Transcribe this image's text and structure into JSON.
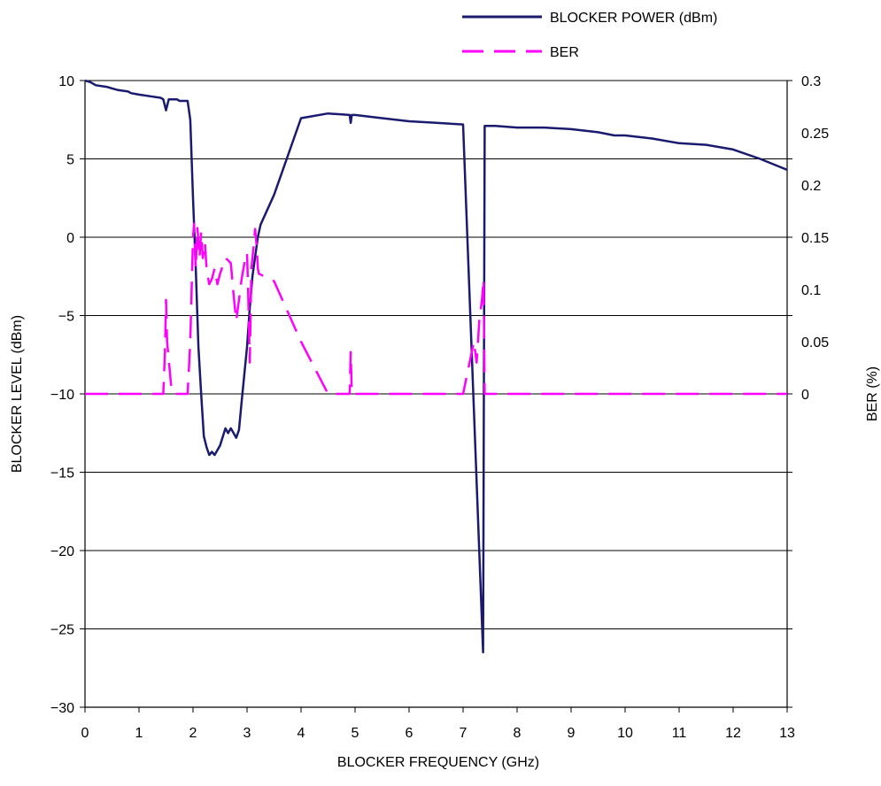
{
  "chart_data": {
    "type": "line",
    "xlabel": "BLOCKER FREQUENCY (GHz)",
    "ylabel": "BLOCKER LEVEL (dBm)",
    "y2label": "BER (%)",
    "xlim": [
      0,
      13
    ],
    "ylim": [
      -30,
      10
    ],
    "y2lim": [
      -0.3,
      0.3
    ],
    "x_ticks": [
      "0",
      "1",
      "2",
      "3",
      "4",
      "5",
      "6",
      "7",
      "8",
      "9",
      "10",
      "11",
      "12",
      "13"
    ],
    "y_ticks": [
      "10",
      "5",
      "0",
      "−5",
      "−10",
      "−15",
      "−20",
      "−25",
      "−30"
    ],
    "y2_ticks": [
      "0.3",
      "0.25",
      "0.2",
      "0.15",
      "0.1",
      "0.05",
      "0"
    ],
    "grid": "horizontal",
    "legend_position": "top-right",
    "series": [
      {
        "name": "BLOCKER POWER (dBm)",
        "axis": "left",
        "color": "#1a1a6e",
        "dash": "solid",
        "points": [
          [
            0.0,
            10.0
          ],
          [
            0.1,
            9.9
          ],
          [
            0.2,
            9.7
          ],
          [
            0.4,
            9.6
          ],
          [
            0.6,
            9.4
          ],
          [
            0.8,
            9.3
          ],
          [
            0.85,
            9.2
          ],
          [
            1.0,
            9.1
          ],
          [
            1.2,
            9.0
          ],
          [
            1.4,
            8.9
          ],
          [
            1.45,
            8.8
          ],
          [
            1.5,
            8.1
          ],
          [
            1.55,
            8.8
          ],
          [
            1.7,
            8.8
          ],
          [
            1.75,
            8.7
          ],
          [
            1.9,
            8.7
          ],
          [
            1.95,
            7.5
          ],
          [
            2.0,
            2.5
          ],
          [
            2.05,
            -2.0
          ],
          [
            2.1,
            -7.0
          ],
          [
            2.15,
            -10.0
          ],
          [
            2.2,
            -12.7
          ],
          [
            2.25,
            -13.4
          ],
          [
            2.3,
            -13.9
          ],
          [
            2.35,
            -13.7
          ],
          [
            2.4,
            -13.9
          ],
          [
            2.5,
            -13.3
          ],
          [
            2.6,
            -12.2
          ],
          [
            2.65,
            -12.5
          ],
          [
            2.7,
            -12.2
          ],
          [
            2.75,
            -12.5
          ],
          [
            2.8,
            -12.8
          ],
          [
            2.85,
            -12.3
          ],
          [
            2.9,
            -10.5
          ],
          [
            3.0,
            -7.0
          ],
          [
            3.05,
            -4.5
          ],
          [
            3.1,
            -2.5
          ],
          [
            3.2,
            0.0
          ],
          [
            3.25,
            0.8
          ],
          [
            3.5,
            2.7
          ],
          [
            4.0,
            7.6
          ],
          [
            4.5,
            7.9
          ],
          [
            4.9,
            7.8
          ],
          [
            4.92,
            7.3
          ],
          [
            4.94,
            7.8
          ],
          [
            5.0,
            7.8
          ],
          [
            5.5,
            7.6
          ],
          [
            6.0,
            7.4
          ],
          [
            6.5,
            7.3
          ],
          [
            7.0,
            7.2
          ],
          [
            7.37,
            -26.5
          ],
          [
            7.4,
            7.1
          ],
          [
            7.6,
            7.1
          ],
          [
            8.0,
            7.0
          ],
          [
            8.5,
            7.0
          ],
          [
            9.0,
            6.9
          ],
          [
            9.5,
            6.7
          ],
          [
            9.8,
            6.5
          ],
          [
            10.0,
            6.5
          ],
          [
            10.5,
            6.3
          ],
          [
            11.0,
            6.0
          ],
          [
            11.5,
            5.9
          ],
          [
            12.0,
            5.6
          ],
          [
            12.5,
            5.0
          ],
          [
            13.0,
            4.3
          ]
        ]
      },
      {
        "name": "BER",
        "axis": "right",
        "color": "#ff00ff",
        "dash": "dashed",
        "points": [
          [
            0.0,
            0.0
          ],
          [
            1.45,
            0.0
          ],
          [
            1.48,
            0.04
          ],
          [
            1.5,
            0.09
          ],
          [
            1.52,
            0.05
          ],
          [
            1.6,
            0.005
          ],
          [
            1.65,
            0.0
          ],
          [
            1.9,
            0.0
          ],
          [
            1.95,
            0.05
          ],
          [
            2.0,
            0.15
          ],
          [
            2.02,
            0.163
          ],
          [
            2.05,
            0.12
          ],
          [
            2.08,
            0.16
          ],
          [
            2.12,
            0.13
          ],
          [
            2.15,
            0.155
          ],
          [
            2.18,
            0.13
          ],
          [
            2.22,
            0.145
          ],
          [
            2.25,
            0.12
          ],
          [
            2.3,
            0.105
          ],
          [
            2.35,
            0.11
          ],
          [
            2.4,
            0.12
          ],
          [
            2.45,
            0.105
          ],
          [
            2.5,
            0.115
          ],
          [
            2.6,
            0.13
          ],
          [
            2.65,
            0.128
          ],
          [
            2.7,
            0.125
          ],
          [
            2.75,
            0.095
          ],
          [
            2.8,
            0.07
          ],
          [
            2.85,
            0.09
          ],
          [
            2.9,
            0.11
          ],
          [
            2.95,
            0.125
          ],
          [
            3.0,
            0.135
          ],
          [
            3.02,
            0.1
          ],
          [
            3.05,
            0.03
          ],
          [
            3.08,
            0.12
          ],
          [
            3.1,
            0.13
          ],
          [
            3.12,
            0.14
          ],
          [
            3.15,
            0.158
          ],
          [
            3.18,
            0.14
          ],
          [
            3.2,
            0.12
          ],
          [
            3.22,
            0.115
          ],
          [
            3.5,
            0.108
          ],
          [
            4.0,
            0.05
          ],
          [
            4.5,
            0.0
          ],
          [
            4.9,
            0.0
          ],
          [
            4.92,
            0.04
          ],
          [
            4.94,
            0.0
          ],
          [
            7.0,
            0.0
          ],
          [
            7.2,
            0.05
          ],
          [
            7.25,
            0.03
          ],
          [
            7.3,
            0.07
          ],
          [
            7.35,
            0.09
          ],
          [
            7.38,
            0.11
          ],
          [
            7.4,
            0.0
          ],
          [
            13.0,
            0.0
          ]
        ]
      }
    ]
  }
}
